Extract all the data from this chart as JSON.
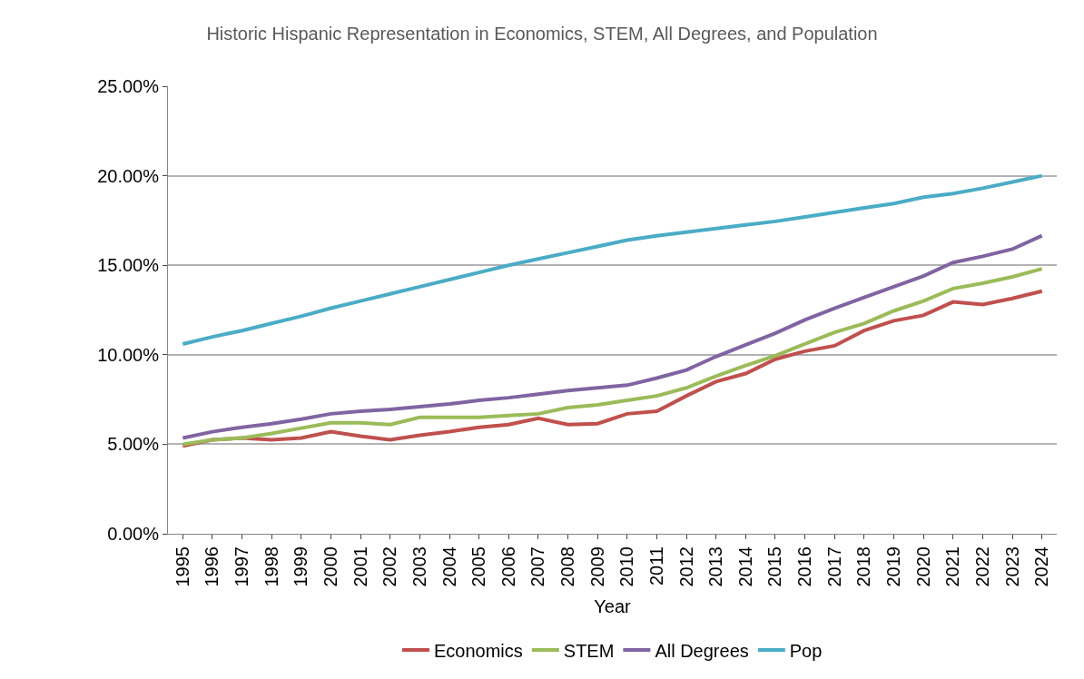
{
  "chart_data": {
    "type": "line",
    "title": "Historic Hispanic Representation in Economics, STEM, All Degrees, and Population",
    "xlabel": "Year",
    "categories": [
      "1995",
      "1996",
      "1997",
      "1998",
      "1999",
      "2000",
      "2001",
      "2002",
      "2003",
      "2004",
      "2005",
      "2006",
      "2007",
      "2008",
      "2009",
      "2010",
      "2011",
      "2012",
      "2013",
      "2014",
      "2015",
      "2016",
      "2017",
      "2018",
      "2019",
      "2020",
      "2021",
      "2022",
      "2023",
      "2024"
    ],
    "series": [
      {
        "name": "Economics",
        "color": "#c0504d",
        "values": [
          4.9,
          5.25,
          5.35,
          5.25,
          5.35,
          5.7,
          5.45,
          5.25,
          5.5,
          5.7,
          5.95,
          6.1,
          6.45,
          6.1,
          6.15,
          6.7,
          6.85,
          7.7,
          8.5,
          8.95,
          9.75,
          10.2,
          10.5,
          11.35,
          11.9,
          12.2,
          12.95,
          12.8,
          13.15,
          13.55
        ]
      },
      {
        "name": "STEM",
        "color": "#9bbb59",
        "values": [
          5.0,
          5.25,
          5.35,
          5.6,
          5.9,
          6.2,
          6.2,
          6.1,
          6.5,
          6.5,
          6.5,
          6.6,
          6.7,
          7.05,
          7.2,
          7.45,
          7.7,
          8.15,
          8.8,
          9.4,
          9.95,
          10.6,
          11.25,
          11.75,
          12.45,
          13.0,
          13.7,
          14.0,
          14.35,
          14.8
        ]
      },
      {
        "name": "All Degrees",
        "color": "#8064a2",
        "values": [
          5.35,
          5.7,
          5.95,
          6.15,
          6.4,
          6.7,
          6.85,
          6.95,
          7.1,
          7.25,
          7.45,
          7.6,
          7.8,
          8.0,
          8.15,
          8.3,
          8.7,
          9.15,
          9.9,
          10.55,
          11.2,
          11.95,
          12.6,
          13.2,
          13.8,
          14.4,
          15.15,
          15.5,
          15.9,
          16.65
        ]
      },
      {
        "name": "Pop",
        "color": "#4bacc6",
        "values": [
          10.6,
          11.0,
          11.35,
          11.75,
          12.15,
          12.6,
          13.0,
          13.4,
          13.8,
          14.2,
          14.6,
          15.0,
          15.35,
          15.7,
          16.05,
          16.4,
          16.65,
          16.85,
          17.05,
          17.25,
          17.45,
          17.7,
          17.95,
          18.2,
          18.45,
          18.8,
          19.0,
          19.3,
          19.65,
          20.0
        ]
      }
    ],
    "ylim": [
      0,
      25
    ],
    "yticks": [
      {
        "value": 0,
        "label": "0.00%"
      },
      {
        "value": 5,
        "label": "5.00%"
      },
      {
        "value": 10,
        "label": "10.00%"
      },
      {
        "value": 15,
        "label": "15.00%"
      },
      {
        "value": 20,
        "label": "20.00%"
      },
      {
        "value": 25,
        "label": "25.00%"
      }
    ],
    "grid": "y",
    "legend": "bottom",
    "marker": "none",
    "line_style": "solid"
  }
}
